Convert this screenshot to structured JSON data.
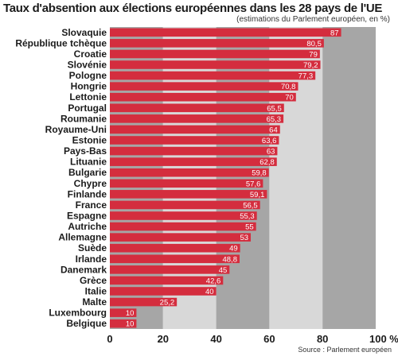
{
  "colors": {
    "bar": "#d42d3e",
    "band_dark": "#a6a6a6",
    "band_light": "#d8d8d8",
    "text": "#1b1b1b"
  },
  "chart_data": {
    "type": "bar",
    "orientation": "horizontal",
    "title": "Taux d'absention aux élections européennes dans les 28 pays de l'UE",
    "subtitle": "(estimations du Parlement européen, en %)",
    "source": "Source : Parlement européen",
    "categories": [
      "Slovaquie",
      "République tchèque",
      "Croatie",
      "Slovénie",
      "Pologne",
      "Hongrie",
      "Lettonie",
      "Portugal",
      "Roumanie",
      "Royaume-Uni",
      "Estonie",
      "Pays-Bas",
      "Lituanie",
      "Bulgarie",
      "Chypre",
      "Finlande",
      "France",
      "Espagne",
      "Autriche",
      "Allemagne",
      "Suède",
      "Irlande",
      "Danemark",
      "Grèce",
      "Italie",
      "Malte",
      "Luxembourg",
      "Belgique"
    ],
    "values": [
      87,
      80.5,
      79,
      79.2,
      77.3,
      70.8,
      70,
      65.5,
      65.3,
      64,
      63.6,
      63,
      62.8,
      59.8,
      57.6,
      59.1,
      56.5,
      55.3,
      55,
      53,
      49,
      48.8,
      45,
      42.6,
      40,
      25.2,
      10,
      10
    ],
    "value_labels": [
      "87",
      "80,5",
      "79",
      "79,2",
      "77,3",
      "70,8",
      "70",
      "65,5",
      "65,3",
      "64",
      "63,6",
      "63",
      "62,8",
      "59,8",
      "57,6",
      "59,1",
      "56,5",
      "55,3",
      "55",
      "53",
      "49",
      "48,8",
      "45",
      "42,6",
      "40",
      "25,2",
      "10",
      "10"
    ],
    "xlim": [
      0,
      100
    ],
    "xticks": [
      0,
      20,
      40,
      60,
      80,
      100
    ],
    "xtick_labels": [
      "0",
      "20",
      "40",
      "60",
      "80",
      "100 %"
    ],
    "background_bands": "alternating grey bands every 20",
    "grid": false,
    "legend": "none"
  }
}
